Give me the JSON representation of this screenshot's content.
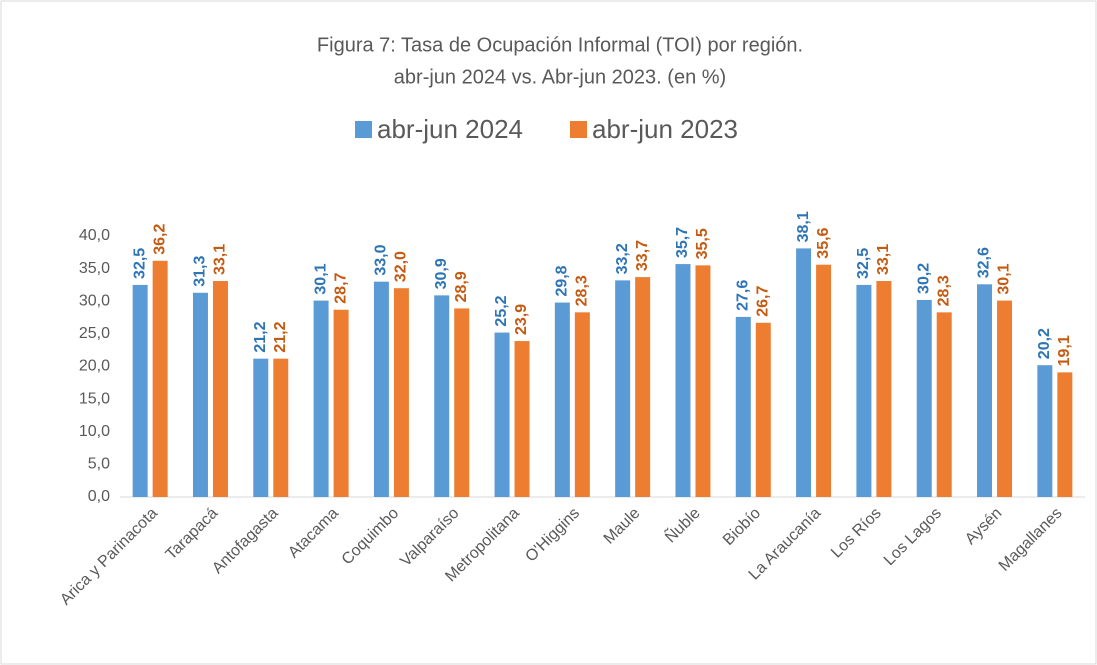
{
  "chart_data": {
    "type": "bar",
    "title": "Figura 7: Tasa de Ocupación Informal (TOI) por región.",
    "subtitle": "abr-jun 2024 vs. Abr-jun 2023. (en %)",
    "categories": [
      "Arica y Parinacota",
      "Tarapacá",
      "Antofagasta",
      "Atacama",
      "Coquimbo",
      "Valparaíso",
      "Metropolitana",
      "O'Higgins",
      "Maule",
      "Ñuble",
      "Biobío",
      "La Araucanía",
      "Los Ríos",
      "Los Lagos",
      "Aysén",
      "Magallanes"
    ],
    "series": [
      {
        "name": "abr-jun 2024",
        "color": "#5b9bd5",
        "label_color": "#2e75b6",
        "values": [
          32.5,
          31.3,
          21.2,
          30.1,
          33.0,
          30.9,
          25.2,
          29.8,
          33.2,
          35.7,
          27.6,
          38.1,
          32.5,
          30.2,
          32.6,
          20.2
        ],
        "value_labels": [
          "32,5",
          "31,3",
          "21,2",
          "30,1",
          "33,0",
          "30,9",
          "25,2",
          "29,8",
          "33,2",
          "35,7",
          "27,6",
          "38,1",
          "32,5",
          "30,2",
          "32,6",
          "20,2"
        ]
      },
      {
        "name": "abr-jun 2023",
        "color": "#ed7d31",
        "label_color": "#c55a11",
        "values": [
          36.2,
          33.1,
          21.2,
          28.7,
          32.0,
          28.9,
          23.9,
          28.3,
          33.7,
          35.5,
          26.7,
          35.6,
          33.1,
          28.3,
          30.1,
          19.1
        ],
        "value_labels": [
          "36,2",
          "33,1",
          "21,2",
          "28,7",
          "32,0",
          "28,9",
          "23,9",
          "28,3",
          "33,7",
          "35,5",
          "26,7",
          "35,6",
          "33,1",
          "28,3",
          "30,1",
          "19,1"
        ]
      }
    ],
    "ylim": [
      0,
      40
    ],
    "yticks": [
      {
        "value": 0,
        "label": "0,0"
      },
      {
        "value": 5,
        "label": "5,0"
      },
      {
        "value": 10,
        "label": "10,0"
      },
      {
        "value": 15,
        "label": "15,0"
      },
      {
        "value": 20,
        "label": "20,0"
      },
      {
        "value": 25,
        "label": "25,0"
      },
      {
        "value": 30,
        "label": "30,0"
      },
      {
        "value": 35,
        "label": "35,0"
      },
      {
        "value": 40,
        "label": "40,0"
      }
    ],
    "grid": false,
    "legend": "top"
  }
}
